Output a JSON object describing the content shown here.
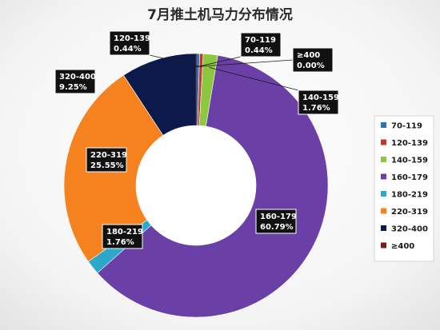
{
  "chart_data": {
    "type": "pie",
    "variant": "donut",
    "title": "7月推土机马力分布情况",
    "legend_position": "right",
    "slices": [
      {
        "label": "70-119",
        "percent_label": "0.44%",
        "value": 0.44,
        "color": "#2e75b6"
      },
      {
        "label": "120-139",
        "percent_label": "0.44%",
        "value": 0.44,
        "color": "#c0392b"
      },
      {
        "label": "140-159",
        "percent_label": "1.76%",
        "value": 1.76,
        "color": "#8dc63f"
      },
      {
        "label": "160-179",
        "percent_label": "60.79%",
        "value": 60.79,
        "color": "#6a3fa6"
      },
      {
        "label": "180-219",
        "percent_label": "1.76%",
        "value": 1.76,
        "color": "#2aa7c9"
      },
      {
        "label": "220-319",
        "percent_label": "25.55%",
        "value": 25.55,
        "color": "#f5821f"
      },
      {
        "label": "320-400",
        "percent_label": "9.25%",
        "value": 9.25,
        "color": "#0c1a4b"
      },
      {
        "label": "≥400",
        "percent_label": "0.00%",
        "value": 0.0,
        "color": "#7a1c1c"
      }
    ]
  }
}
